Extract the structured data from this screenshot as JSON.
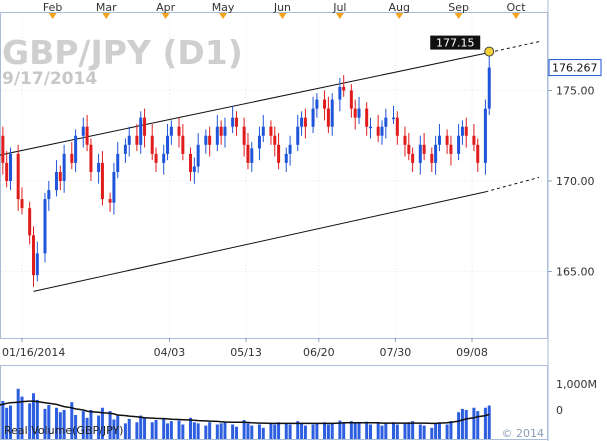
{
  "chart_data": [
    {
      "type": "candlestick",
      "title": "GBP/JPY (D1)",
      "subtitle": "9/17/2014",
      "top_month_labels": [
        "Feb",
        "Mar",
        "Apr",
        "May",
        "Jun",
        "Jul",
        "Aug",
        "Sep",
        "Oct"
      ],
      "x_tick_labels": [
        "01/16/2014",
        "04/03",
        "05/13",
        "06/20",
        "07/30",
        "09/08"
      ],
      "y_ticks": [
        165.0,
        170.0,
        175.0
      ],
      "y_tick_labels": [
        "165.00",
        "170.00",
        "175.00"
      ],
      "ylim": [
        161.2,
        178.2
      ],
      "grid": true,
      "current_price": 176.267,
      "current_price_label": "176.267",
      "target_price": 177.15,
      "target_price_label": "177.15",
      "channel": {
        "upper": {
          "start": {
            "date": "2014-01-03",
            "price": 171.4
          },
          "end": {
            "date": "2014-09-17",
            "price": 177.1
          }
        },
        "lower": {
          "start": {
            "date": "2014-01-22",
            "price": 163.9
          },
          "end": {
            "date": "2014-09-15",
            "price": 169.4
          }
        },
        "upper_extension_end": {
          "date": "2014-10-13",
          "price": 177.7
        },
        "lower_extension_end": {
          "date": "2014-10-13",
          "price": 170.2
        }
      },
      "series": [
        {
          "dates": [
            "2014-01-02",
            "2014-01-06",
            "2014-01-08",
            "2014-01-10",
            "2014-01-14",
            "2014-01-16",
            "2014-01-20",
            "2014-01-22",
            "2014-01-24",
            "2014-01-28",
            "2014-01-30",
            "2014-02-03",
            "2014-02-05",
            "2014-02-07",
            "2014-02-11",
            "2014-02-13",
            "2014-02-17",
            "2014-02-19",
            "2014-02-21",
            "2014-02-25",
            "2014-02-27",
            "2014-03-03",
            "2014-03-05",
            "2014-03-07",
            "2014-03-11",
            "2014-03-13",
            "2014-03-17",
            "2014-03-19",
            "2014-03-21",
            "2014-03-25",
            "2014-03-27",
            "2014-03-31",
            "2014-04-02",
            "2014-04-04",
            "2014-04-08",
            "2014-04-10",
            "2014-04-14",
            "2014-04-16",
            "2014-04-18",
            "2014-04-22",
            "2014-04-24",
            "2014-04-28",
            "2014-04-30",
            "2014-05-02",
            "2014-05-06",
            "2014-05-08",
            "2014-05-12",
            "2014-05-14",
            "2014-05-16",
            "2014-05-20",
            "2014-05-22",
            "2014-05-26",
            "2014-05-28",
            "2014-05-30",
            "2014-06-03",
            "2014-06-05",
            "2014-06-09",
            "2014-06-11",
            "2014-06-13",
            "2014-06-17",
            "2014-06-19",
            "2014-06-23",
            "2014-06-25",
            "2014-06-27",
            "2014-07-01",
            "2014-07-03",
            "2014-07-07",
            "2014-07-09",
            "2014-07-11",
            "2014-07-15",
            "2014-07-17",
            "2014-07-21",
            "2014-07-23",
            "2014-07-25",
            "2014-07-29",
            "2014-07-31",
            "2014-08-04",
            "2014-08-06",
            "2014-08-08",
            "2014-08-12",
            "2014-08-14",
            "2014-08-18",
            "2014-08-20",
            "2014-08-22",
            "2014-08-26",
            "2014-08-28",
            "2014-09-01",
            "2014-09-03",
            "2014-09-05",
            "2014-09-09",
            "2014-09-11",
            "2014-09-15",
            "2014-09-17"
          ],
          "close": [
            172.5,
            171.0,
            170.0,
            171.5,
            169.0,
            168.5,
            167.0,
            164.8,
            166.0,
            169.0,
            169.5,
            170.5,
            170.0,
            171.5,
            171.0,
            172.5,
            173.0,
            172.0,
            170.5,
            171.0,
            169.0,
            168.8,
            170.5,
            171.5,
            172.0,
            172.5,
            172.0,
            173.5,
            172.5,
            171.5,
            171.0,
            171.5,
            172.5,
            173.0,
            172.5,
            171.5,
            170.5,
            170.8,
            172.0,
            172.5,
            172.0,
            173.0,
            172.5,
            173.0,
            173.5,
            173.0,
            172.0,
            171.0,
            171.8,
            172.5,
            173.0,
            172.5,
            172.0,
            171.0,
            171.5,
            172.0,
            173.0,
            173.5,
            173.0,
            174.0,
            174.5,
            174.0,
            173.0,
            174.5,
            175.2,
            175.0,
            174.0,
            173.5,
            174.0,
            173.0,
            173.0,
            172.5,
            173.0,
            173.5,
            173.5,
            172.5,
            172.0,
            171.5,
            171.0,
            172.0,
            171.5,
            171.0,
            172.0,
            172.5,
            172.0,
            171.5,
            172.5,
            173.0,
            172.5,
            172.0,
            171.0,
            174.0,
            176.267
          ]
        }
      ],
      "volume_panel": {
        "label": "Real Volume(GBP/JPY)",
        "y_tick_labels": [
          "1,000M",
          "0"
        ],
        "values_m": [
          520,
          680,
          560,
          600,
          900,
          760,
          640,
          820,
          700,
          540,
          610,
          560,
          480,
          520,
          660,
          430,
          500,
          380,
          520,
          420,
          560,
          500,
          350,
          420,
          280,
          360,
          300,
          420,
          380,
          300,
          340,
          360,
          280,
          320,
          330,
          260,
          380,
          300,
          280,
          240,
          300,
          260,
          280,
          300,
          260,
          220,
          340,
          280,
          240,
          260,
          200,
          280,
          260,
          300,
          280,
          260,
          320,
          280,
          240,
          260,
          280,
          300,
          260,
          280,
          330,
          300,
          320,
          280,
          290,
          310,
          260,
          300,
          240,
          280,
          300,
          260,
          280,
          300,
          320,
          260,
          240,
          200,
          280,
          300,
          260,
          320,
          480,
          540,
          520,
          560,
          500,
          560,
          600
        ],
        "average_values_m": [
          600,
          620,
          640,
          650,
          660,
          670,
          680,
          680,
          670,
          650,
          640,
          620,
          600,
          580,
          560,
          540,
          520,
          500,
          490,
          480,
          470,
          460,
          450,
          430,
          420,
          410,
          400,
          390,
          380,
          375,
          370,
          365,
          360,
          355,
          350,
          345,
          340,
          335,
          330,
          325,
          320,
          315,
          310,
          305,
          300,
          300,
          300,
          295,
          290,
          285,
          285,
          280,
          280,
          280,
          280,
          280,
          280,
          280,
          280,
          280,
          280,
          280,
          280,
          280,
          285,
          290,
          290,
          290,
          290,
          290,
          290,
          290,
          285,
          285,
          285,
          285,
          285,
          285,
          285,
          285,
          285,
          280,
          280,
          285,
          290,
          300,
          320,
          340,
          360,
          380,
          400,
          420,
          440
        ]
      },
      "watermark": "© 2014"
    }
  ]
}
